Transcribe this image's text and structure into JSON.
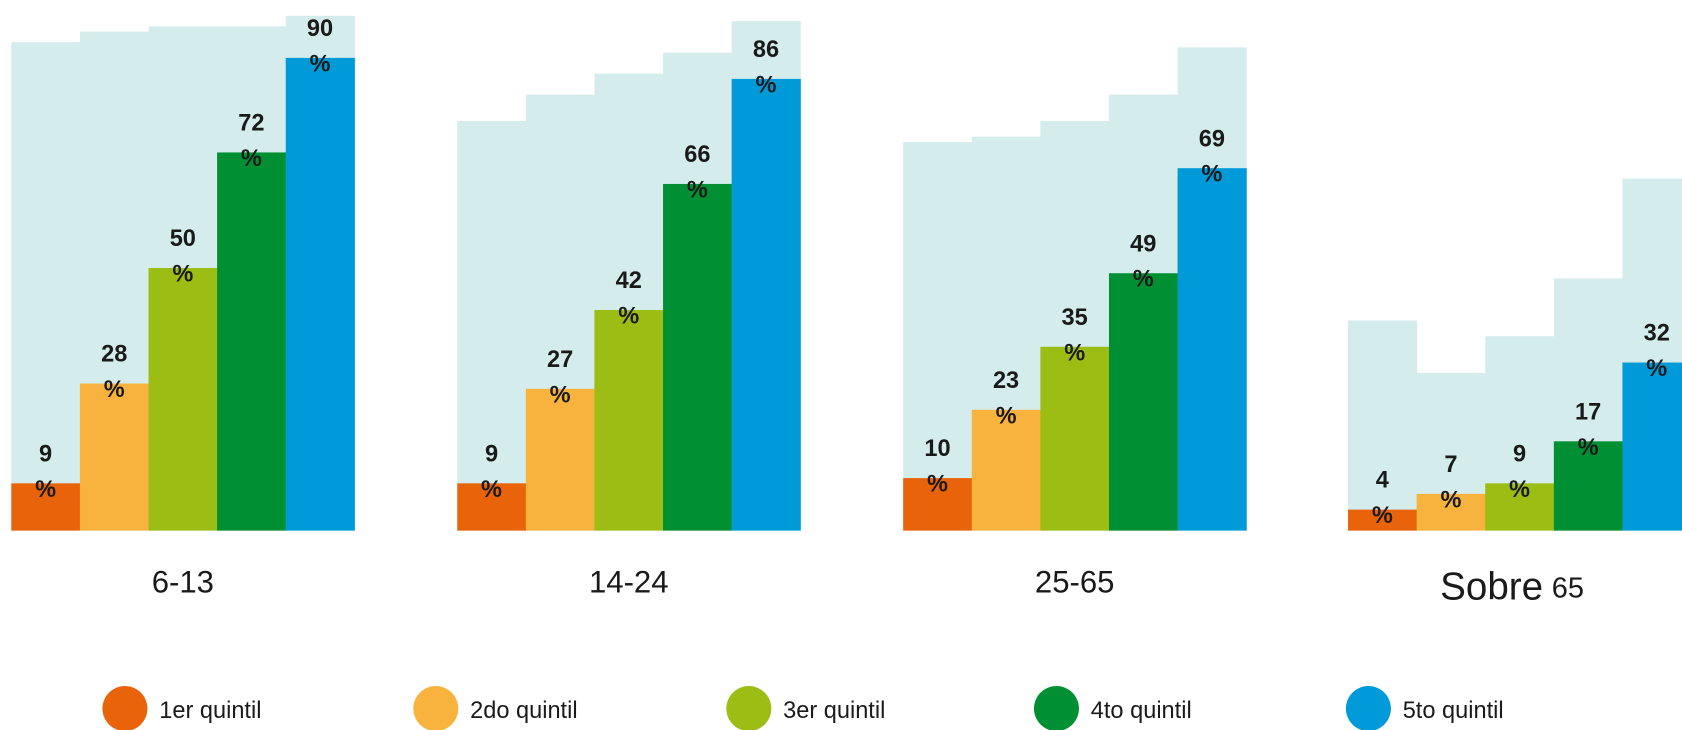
{
  "chart_data": {
    "type": "bar",
    "categories": [
      "6-13",
      "14-24",
      "25-65",
      "Sobre 65"
    ],
    "series": [
      {
        "name": "1er quintil",
        "color": "#e8630a",
        "values": [
          9,
          9,
          10,
          4
        ],
        "value_labels": [
          "9 %",
          "9 %",
          "10 %",
          "4 %"
        ]
      },
      {
        "name": "2do quintil",
        "color": "#f7b33d",
        "values": [
          28,
          27,
          23,
          7
        ],
        "value_labels": [
          "28 %",
          "27 %",
          "23 %",
          "7 %"
        ]
      },
      {
        "name": "3er quintil",
        "color": "#9bbd14",
        "values": [
          50,
          42,
          35,
          9
        ],
        "value_labels": [
          "50 %",
          "42 %",
          "35 %",
          "9 %"
        ]
      },
      {
        "name": "4to quintil",
        "color": "#008f32",
        "values": [
          72,
          66,
          49,
          17
        ],
        "value_labels": [
          "72 %",
          "66 %",
          "49 %",
          "17 %"
        ]
      },
      {
        "name": "5to quintil",
        "color": "#009ad9",
        "values": [
          90,
          86,
          69,
          32
        ],
        "value_labels": [
          "90 %",
          "86 %",
          "69 %",
          "32 %"
        ]
      }
    ],
    "background": {
      "color": "#d4ecec",
      "values": [
        [
          93,
          95,
          96,
          96,
          98
        ],
        [
          78,
          83,
          87,
          91,
          97
        ],
        [
          74,
          75,
          78,
          83,
          92
        ],
        [
          40,
          30,
          37,
          48,
          67
        ]
      ]
    },
    "ylim": [
      0,
      100
    ]
  }
}
